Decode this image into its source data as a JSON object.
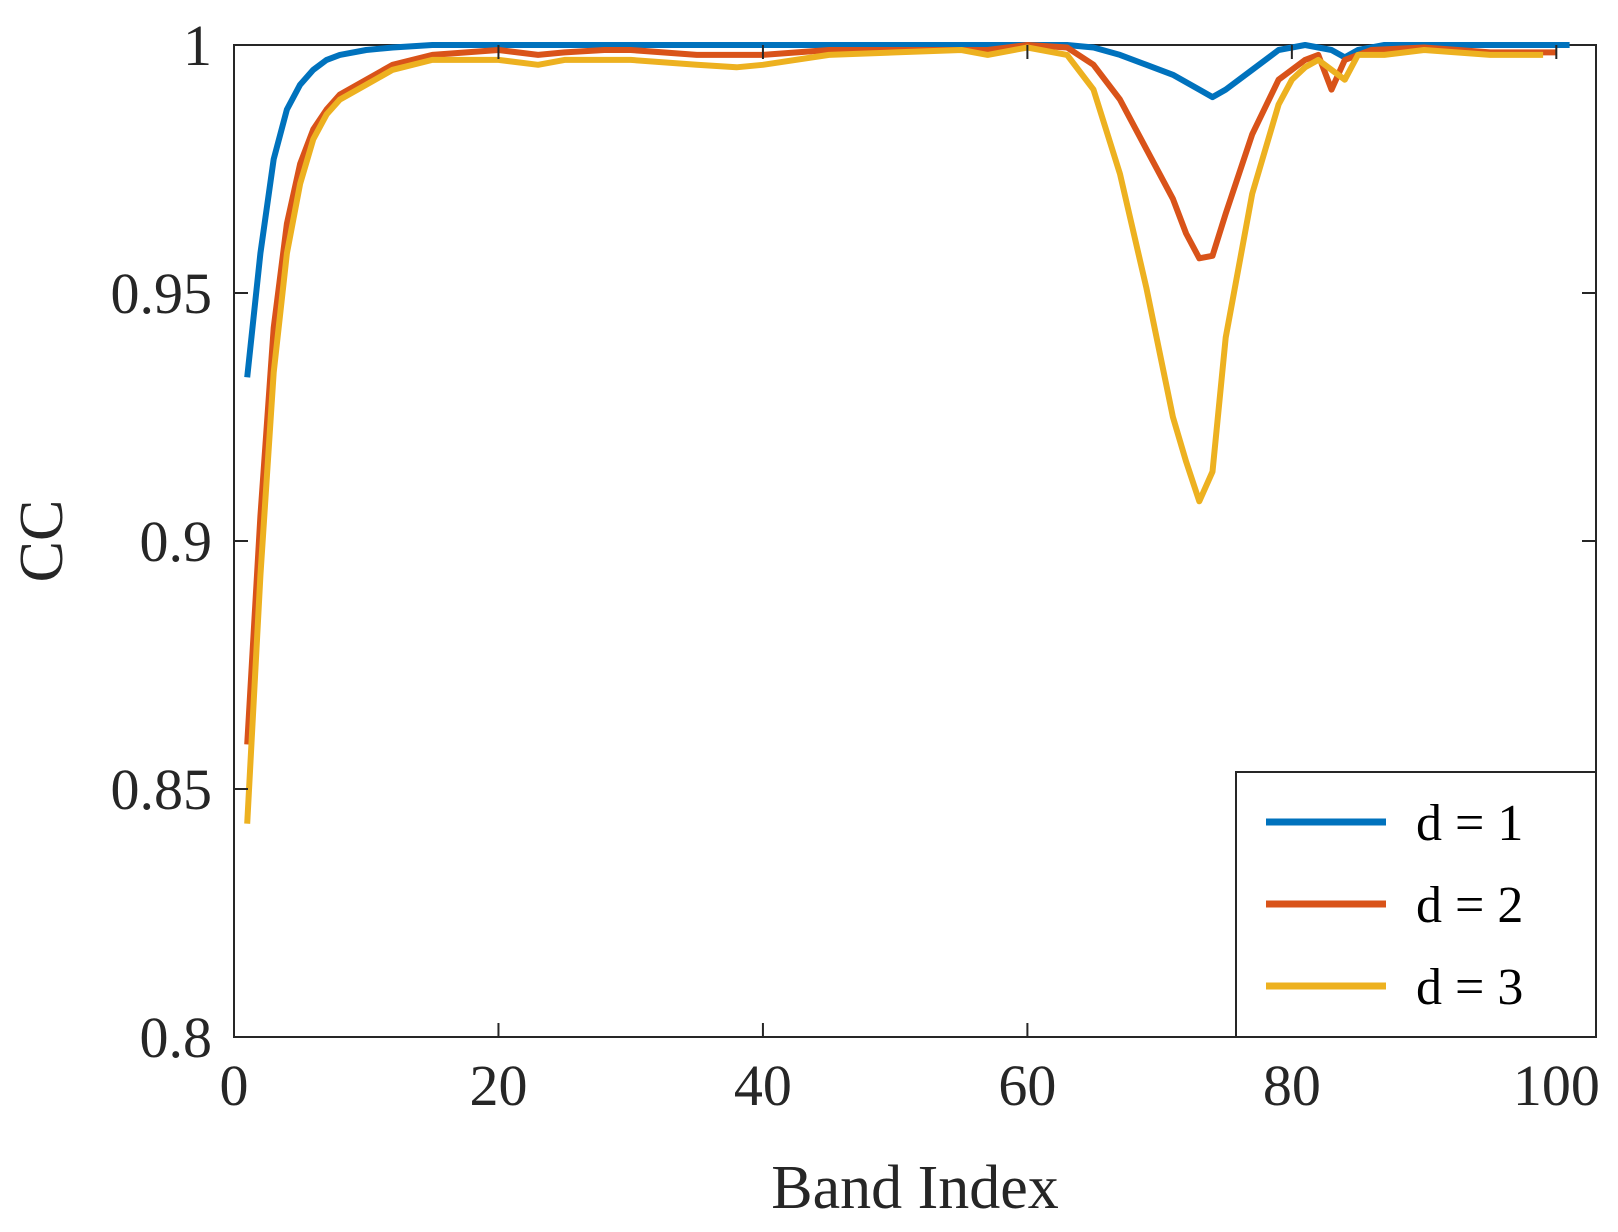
{
  "chart_data": {
    "type": "line",
    "title": "",
    "xlabel": "Band Index",
    "ylabel": "CC",
    "xlim": [
      0,
      103
    ],
    "ylim": [
      0.8,
      1
    ],
    "xticks": [
      0,
      20,
      40,
      60,
      80,
      100
    ],
    "yticks": [
      0.8,
      0.85,
      0.9,
      0.95,
      1
    ],
    "xtick_labels": [
      "0",
      "20",
      "40",
      "60",
      "80",
      "100"
    ],
    "ytick_labels": [
      "0.8",
      "0.85",
      "0.9",
      "0.95",
      "1"
    ],
    "grid": false,
    "legend_position": "bottom-right",
    "series": [
      {
        "name": "d = 1",
        "color": "#0072BD",
        "points": [
          [
            1,
            0.933
          ],
          [
            2,
            0.958
          ],
          [
            3,
            0.977
          ],
          [
            4,
            0.987
          ],
          [
            5,
            0.992
          ],
          [
            6,
            0.995
          ],
          [
            7,
            0.997
          ],
          [
            8,
            0.998
          ],
          [
            10,
            0.999
          ],
          [
            12,
            0.9995
          ],
          [
            15,
            1.0
          ],
          [
            20,
            1.0
          ],
          [
            30,
            1.0
          ],
          [
            40,
            1.0
          ],
          [
            50,
            1.0
          ],
          [
            57,
            1.0
          ],
          [
            60,
            1.0
          ],
          [
            63,
            1.0
          ],
          [
            65,
            0.9995
          ],
          [
            67,
            0.998
          ],
          [
            69,
            0.996
          ],
          [
            71,
            0.994
          ],
          [
            73,
            0.991
          ],
          [
            74,
            0.9895
          ],
          [
            75,
            0.991
          ],
          [
            77,
            0.995
          ],
          [
            79,
            0.999
          ],
          [
            81,
            1.0
          ],
          [
            83,
            0.999
          ],
          [
            84,
            0.9975
          ],
          [
            85,
            0.999
          ],
          [
            87,
            1.0
          ],
          [
            95,
            1.0
          ],
          [
            101,
            1.0
          ]
        ]
      },
      {
        "name": "d = 2",
        "color": "#D95319",
        "points": [
          [
            1,
            0.859
          ],
          [
            2,
            0.905
          ],
          [
            3,
            0.943
          ],
          [
            4,
            0.964
          ],
          [
            5,
            0.976
          ],
          [
            6,
            0.983
          ],
          [
            7,
            0.987
          ],
          [
            8,
            0.99
          ],
          [
            10,
            0.993
          ],
          [
            12,
            0.996
          ],
          [
            15,
            0.998
          ],
          [
            20,
            0.999
          ],
          [
            23,
            0.998
          ],
          [
            25,
            0.9985
          ],
          [
            28,
            0.999
          ],
          [
            30,
            0.999
          ],
          [
            35,
            0.998
          ],
          [
            38,
            0.998
          ],
          [
            40,
            0.998
          ],
          [
            45,
            0.999
          ],
          [
            50,
            0.999
          ],
          [
            55,
            0.999
          ],
          [
            57,
            0.999
          ],
          [
            60,
            1.0
          ],
          [
            63,
            0.9995
          ],
          [
            65,
            0.996
          ],
          [
            67,
            0.989
          ],
          [
            69,
            0.979
          ],
          [
            71,
            0.969
          ],
          [
            72,
            0.962
          ],
          [
            73,
            0.957
          ],
          [
            74,
            0.9575
          ],
          [
            75,
            0.966
          ],
          [
            77,
            0.982
          ],
          [
            79,
            0.993
          ],
          [
            81,
            0.997
          ],
          [
            82,
            0.998
          ],
          [
            83,
            0.991
          ],
          [
            84,
            0.997
          ],
          [
            86,
            0.999
          ],
          [
            90,
            0.9995
          ],
          [
            95,
            0.9985
          ],
          [
            100,
            0.9985
          ]
        ]
      },
      {
        "name": "d = 3",
        "color": "#EDB120",
        "points": [
          [
            1,
            0.843
          ],
          [
            2,
            0.893
          ],
          [
            3,
            0.934
          ],
          [
            4,
            0.958
          ],
          [
            5,
            0.972
          ],
          [
            6,
            0.981
          ],
          [
            7,
            0.986
          ],
          [
            8,
            0.989
          ],
          [
            10,
            0.992
          ],
          [
            12,
            0.995
          ],
          [
            15,
            0.997
          ],
          [
            20,
            0.997
          ],
          [
            23,
            0.996
          ],
          [
            25,
            0.997
          ],
          [
            30,
            0.997
          ],
          [
            35,
            0.996
          ],
          [
            38,
            0.9955
          ],
          [
            40,
            0.996
          ],
          [
            45,
            0.998
          ],
          [
            50,
            0.9985
          ],
          [
            55,
            0.999
          ],
          [
            57,
            0.998
          ],
          [
            60,
            0.9995
          ],
          [
            63,
            0.998
          ],
          [
            65,
            0.991
          ],
          [
            67,
            0.974
          ],
          [
            69,
            0.951
          ],
          [
            71,
            0.925
          ],
          [
            72,
            0.916
          ],
          [
            73,
            0.908
          ],
          [
            74,
            0.914
          ],
          [
            75,
            0.941
          ],
          [
            77,
            0.97
          ],
          [
            79,
            0.988
          ],
          [
            80,
            0.993
          ],
          [
            81,
            0.9955
          ],
          [
            82,
            0.997
          ],
          [
            83,
            0.995
          ],
          [
            84,
            0.993
          ],
          [
            85,
            0.998
          ],
          [
            87,
            0.998
          ],
          [
            90,
            0.999
          ],
          [
            95,
            0.998
          ],
          [
            99,
            0.998
          ]
        ]
      }
    ]
  }
}
